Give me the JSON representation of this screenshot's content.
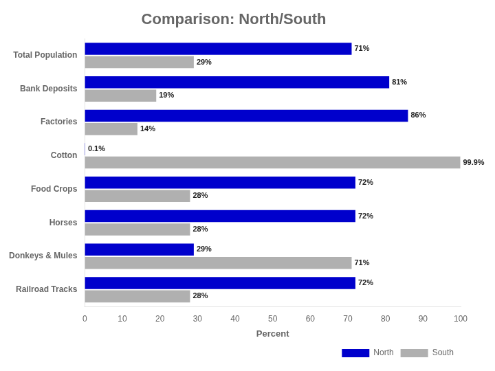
{
  "chart_data": {
    "type": "bar",
    "orientation": "horizontal",
    "title": "Comparison: North/South",
    "categories": [
      "Total Population",
      "Bank Deposits",
      "Factories",
      "Cotton",
      "Food Crops",
      "Horses",
      "Donkeys & Mules",
      "Railroad Tracks"
    ],
    "series": [
      {
        "name": "North",
        "color": "#0000CC",
        "values": [
          71,
          81,
          86,
          0.1,
          72,
          72,
          29,
          72
        ],
        "value_labels": [
          "71%",
          "81%",
          "86%",
          "0.1%",
          "72%",
          "72%",
          "29%",
          "72%"
        ]
      },
      {
        "name": "South",
        "color": "#B0B0B0",
        "values": [
          29,
          19,
          14,
          99.9,
          28,
          28,
          71,
          28
        ],
        "value_labels": [
          "29%",
          "19%",
          "14%",
          "99.9%",
          "28%",
          "28%",
          "71%",
          "28%"
        ]
      }
    ],
    "xlabel": "Percent",
    "xlim": [
      0,
      100
    ],
    "xticks": [
      0,
      10,
      20,
      30,
      40,
      50,
      60,
      70,
      80,
      90,
      100
    ],
    "grid": false,
    "legend": "lower right",
    "data_labels": true
  }
}
